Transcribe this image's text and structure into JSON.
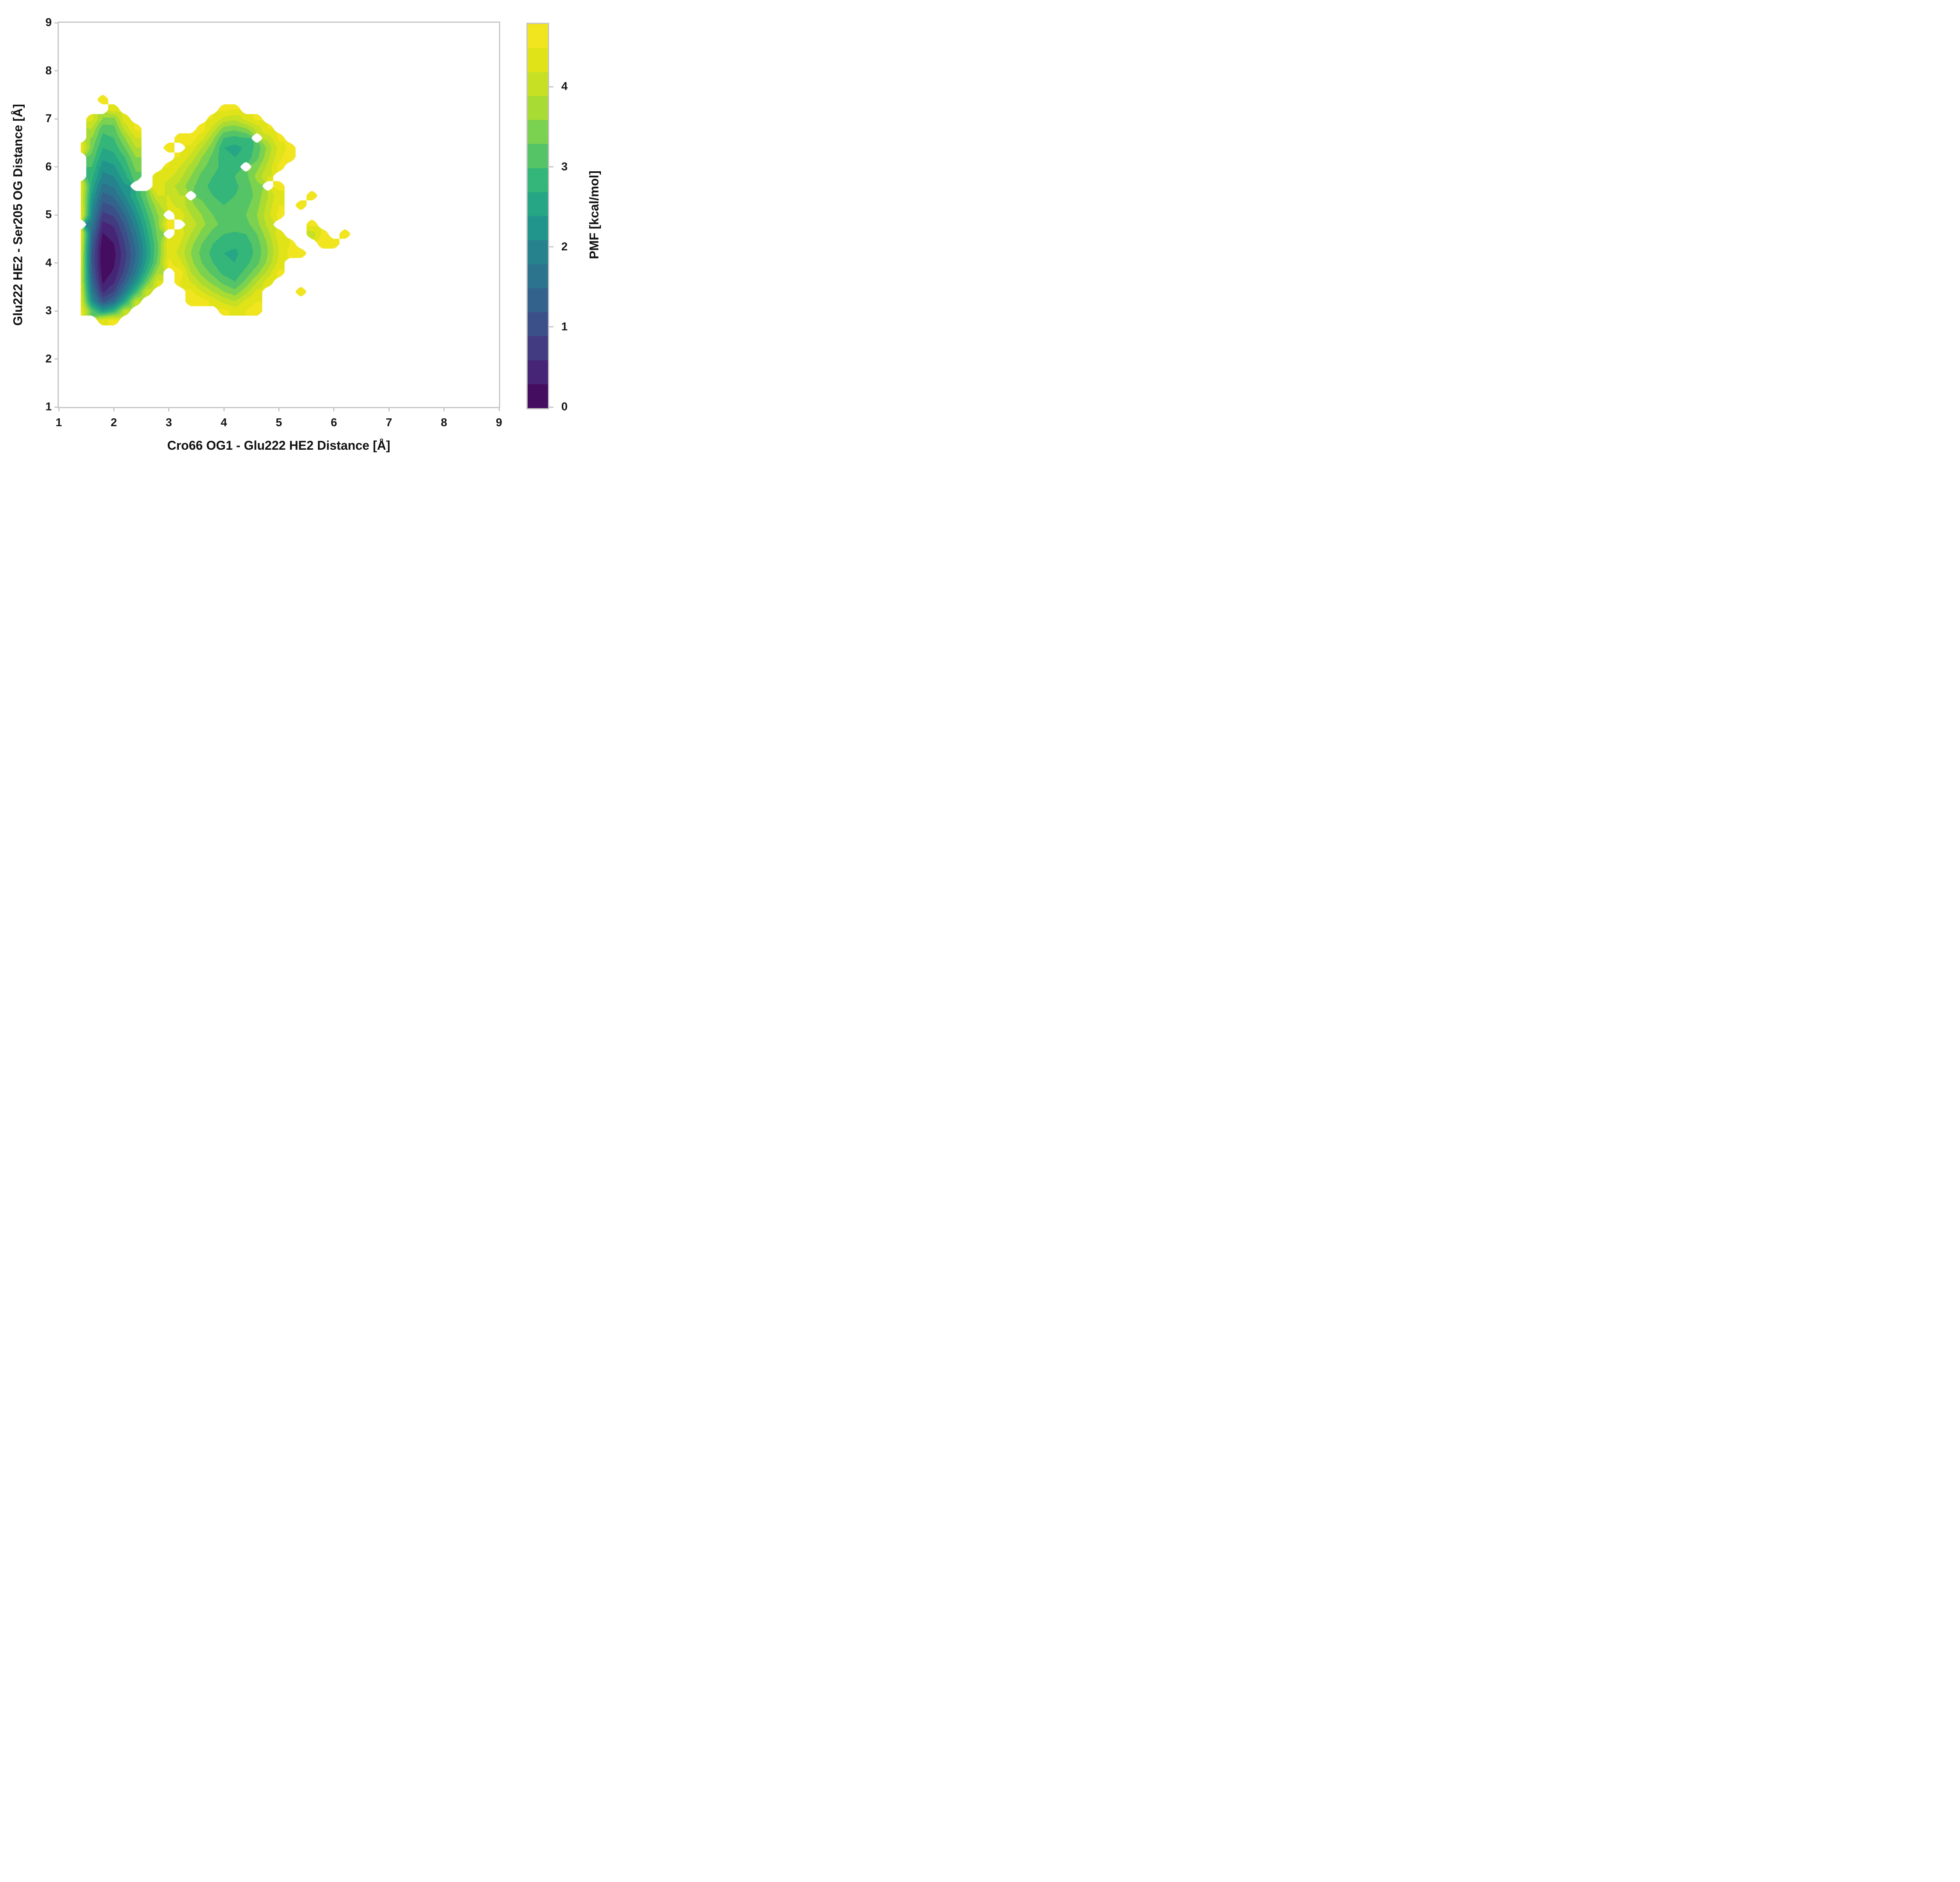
{
  "figure": {
    "background": "#ffffff",
    "spine_color": "#c6c6c6",
    "tick_color": "#c6c6c6",
    "text_color": "#161616"
  },
  "axes": {
    "x": {
      "label": "Cro66 OG1 - Glu222 HE2 Distance [Å]",
      "min": 1,
      "max": 9,
      "ticks": [
        "1",
        "2",
        "3",
        "4",
        "5",
        "6",
        "7",
        "8",
        "9"
      ]
    },
    "y": {
      "label": "Glu222 HE2 - Ser205 OG Distance [Å]",
      "min": 1,
      "max": 9,
      "ticks": [
        "1",
        "2",
        "3",
        "4",
        "5",
        "6",
        "7",
        "8",
        "9"
      ]
    }
  },
  "colorbar": {
    "title": "PMF [kcal/mol]",
    "tick_values": [
      0,
      1,
      2,
      3,
      4
    ],
    "tick_labels": [
      "0",
      "1",
      "2",
      "3",
      "4"
    ],
    "vmin": 0,
    "vmax": 4.8,
    "n_levels": 16,
    "level_step": 0.3,
    "colors": [
      "#450d5f",
      "#472576",
      "#423b81",
      "#3b5089",
      "#33628d",
      "#2c738e",
      "#26838e",
      "#21958b",
      "#26a684",
      "#34b57a",
      "#55c466",
      "#7bd150",
      "#a8db33",
      "#c7e023",
      "#e1e319",
      "#f0e51f"
    ]
  },
  "chart_data": {
    "type": "filled_contour",
    "title": "",
    "xlabel": "Cro66 OG1 - Glu222 HE2 Distance [Å]",
    "ylabel": "Glu222 HE2 - Ser205 OG Distance [Å]",
    "zlabel": "PMF [kcal/mol]",
    "xlim": [
      1,
      9
    ],
    "ylim": [
      1,
      9
    ],
    "zlim": [
      0,
      4.8
    ],
    "levels_step": 0.3,
    "legend": "colorbar-right",
    "grid_off": true,
    "features": {
      "global_minimum": {
        "x": 1.8,
        "y": 4.1,
        "pmf": 0.0
      },
      "secondary_basin": {
        "x": 4.2,
        "y": 4.3,
        "pmf": 2.6
      },
      "notes": "deep narrow basin near x=1.8 elongated y=3-7; broad shallow basin x=3.4-5 y=3-7.2; scattered high-PMF fragments out to x=6.3; white = unsampled"
    },
    "grid": {
      "x": [
        1.4,
        1.6,
        1.8,
        2.0,
        2.2,
        2.4,
        2.6,
        2.8,
        3.0,
        3.2,
        3.4,
        3.6,
        3.8,
        4.0,
        4.2,
        4.4,
        4.6,
        4.8,
        5.0,
        5.2,
        5.4,
        5.6,
        5.8,
        6.0,
        6.2,
        6.4
      ],
      "y": [
        2.6,
        2.8,
        3.0,
        3.2,
        3.4,
        3.6,
        3.8,
        4.0,
        4.2,
        4.4,
        4.6,
        4.8,
        5.0,
        5.2,
        5.4,
        5.6,
        5.8,
        6.0,
        6.2,
        6.4,
        6.6,
        6.8,
        7.0,
        7.2,
        7.4,
        7.6
      ],
      "values": [
        [
          null,
          null,
          null,
          null,
          null,
          null,
          null,
          null,
          null,
          null,
          null,
          null,
          null,
          null,
          null,
          null,
          null,
          null,
          null,
          null,
          null,
          null,
          null,
          null,
          null,
          null
        ],
        [
          null,
          null,
          4.4,
          4.6,
          null,
          null,
          null,
          null,
          null,
          null,
          null,
          null,
          null,
          null,
          null,
          null,
          null,
          null,
          null,
          null,
          null,
          null,
          null,
          null,
          null,
          null
        ],
        [
          4.6,
          3.2,
          2.4,
          2.8,
          4.0,
          null,
          null,
          null,
          null,
          null,
          null,
          null,
          null,
          4.6,
          4.4,
          4.5,
          4.7,
          null,
          null,
          null,
          null,
          null,
          null,
          null,
          null,
          null
        ],
        [
          4.4,
          2.2,
          1.1,
          1.5,
          2.6,
          4.0,
          null,
          null,
          null,
          null,
          4.7,
          4.7,
          4.4,
          4.1,
          3.9,
          4.3,
          4.5,
          null,
          null,
          null,
          null,
          null,
          null,
          null,
          null,
          null
        ],
        [
          4.3,
          1.8,
          0.55,
          0.9,
          1.8,
          2.9,
          4.1,
          null,
          null,
          null,
          4.6,
          4.2,
          3.9,
          3.6,
          3.4,
          3.8,
          4.3,
          null,
          null,
          null,
          4.6,
          null,
          null,
          null,
          null,
          null
        ],
        [
          4.2,
          1.5,
          0.25,
          0.55,
          1.3,
          2.2,
          3.3,
          4.3,
          null,
          4.5,
          4.2,
          3.8,
          3.5,
          3.2,
          3.0,
          3.4,
          3.9,
          4.4,
          null,
          null,
          null,
          null,
          null,
          null,
          null,
          null
        ],
        [
          4.2,
          1.3,
          0.12,
          0.35,
          1.0,
          1.8,
          2.8,
          3.8,
          null,
          4.7,
          3.9,
          3.5,
          3.2,
          2.9,
          2.8,
          3.1,
          3.5,
          4.0,
          4.6,
          null,
          null,
          null,
          null,
          null,
          null,
          null
        ],
        [
          4.3,
          1.2,
          0.05,
          0.25,
          0.85,
          1.6,
          2.5,
          3.4,
          4.6,
          4.3,
          3.7,
          3.3,
          3.0,
          2.75,
          2.7,
          2.9,
          3.2,
          3.7,
          4.3,
          null,
          null,
          null,
          null,
          null,
          null,
          null
        ],
        [
          4.3,
          1.2,
          0.02,
          0.2,
          0.8,
          1.5,
          2.4,
          3.3,
          4.4,
          4.1,
          3.6,
          3.2,
          2.9,
          2.7,
          2.65,
          2.8,
          3.1,
          3.6,
          4.2,
          4.6,
          4.6,
          null,
          null,
          null,
          null,
          null
        ],
        [
          4.4,
          1.3,
          0.1,
          0.3,
          0.9,
          1.6,
          2.45,
          3.3,
          4.5,
          4.2,
          3.7,
          3.3,
          3.0,
          2.8,
          2.75,
          2.85,
          3.15,
          3.65,
          4.25,
          4.5,
          null,
          null,
          4.7,
          4.6,
          null,
          null
        ],
        [
          4.5,
          1.5,
          0.28,
          0.45,
          1.05,
          1.75,
          2.6,
          3.4,
          null,
          4.4,
          3.9,
          3.5,
          3.2,
          3.0,
          2.95,
          3.0,
          3.3,
          3.8,
          4.4,
          null,
          null,
          4.0,
          4.6,
          null,
          4.7,
          null
        ],
        [
          null,
          1.8,
          0.5,
          0.65,
          1.25,
          1.95,
          2.75,
          3.5,
          4.7,
          null,
          4.1,
          3.7,
          3.4,
          3.2,
          3.15,
          3.2,
          3.5,
          4.0,
          null,
          null,
          null,
          4.6,
          null,
          null,
          null,
          null
        ],
        [
          4.6,
          2.0,
          0.8,
          0.95,
          1.5,
          2.2,
          2.95,
          3.6,
          null,
          4.4,
          3.9,
          3.6,
          3.3,
          3.1,
          3.2,
          3.3,
          3.6,
          4.1,
          4.6,
          null,
          null,
          null,
          null,
          null,
          null,
          null
        ],
        [
          4.5,
          2.2,
          1.1,
          1.25,
          1.8,
          2.45,
          3.15,
          3.8,
          4.3,
          4.1,
          3.7,
          3.4,
          3.1,
          3.0,
          3.1,
          3.2,
          3.5,
          4.0,
          4.5,
          null,
          4.7,
          null,
          null,
          null,
          null,
          null
        ],
        [
          4.4,
          2.4,
          1.4,
          1.55,
          2.1,
          2.7,
          3.35,
          4.2,
          4.2,
          3.9,
          null,
          3.2,
          3.0,
          2.9,
          3.0,
          3.1,
          3.4,
          3.9,
          4.4,
          null,
          null,
          4.6,
          null,
          null,
          null,
          null
        ],
        [
          4.4,
          2.6,
          1.7,
          1.85,
          2.35,
          null,
          null,
          4.5,
          4.0,
          3.8,
          3.4,
          3.1,
          2.9,
          2.8,
          2.95,
          3.1,
          3.5,
          null,
          4.6,
          null,
          null,
          null,
          null,
          null,
          null,
          null
        ],
        [
          null,
          2.8,
          2.0,
          2.1,
          2.6,
          3.2,
          null,
          4.3,
          4.3,
          4.0,
          3.6,
          3.2,
          3.0,
          2.85,
          3.0,
          3.2,
          3.7,
          4.2,
          null,
          null,
          null,
          null,
          null,
          null,
          null,
          null
        ],
        [
          null,
          3.0,
          2.2,
          2.35,
          2.8,
          3.4,
          null,
          null,
          4.5,
          4.2,
          3.8,
          3.4,
          3.1,
          2.9,
          2.9,
          null,
          3.5,
          4.0,
          4.6,
          null,
          null,
          null,
          null,
          null,
          null,
          null
        ],
        [
          null,
          3.2,
          2.5,
          2.6,
          3.0,
          3.6,
          null,
          null,
          null,
          4.5,
          4.1,
          3.6,
          3.2,
          2.8,
          2.7,
          2.8,
          3.2,
          3.8,
          4.4,
          4.7,
          null,
          null,
          null,
          null,
          null,
          null
        ],
        [
          4.6,
          3.4,
          2.7,
          2.8,
          3.3,
          3.9,
          null,
          null,
          4.7,
          null,
          4.4,
          3.9,
          3.4,
          2.7,
          2.6,
          2.75,
          3.1,
          3.7,
          4.3,
          4.6,
          null,
          null,
          null,
          null,
          null,
          null
        ],
        [
          null,
          3.6,
          2.9,
          3.0,
          3.6,
          4.2,
          null,
          null,
          null,
          4.7,
          4.7,
          4.3,
          3.7,
          3.0,
          2.9,
          3.0,
          null,
          4.0,
          4.6,
          null,
          null,
          null,
          null,
          null,
          null,
          null
        ],
        [
          null,
          3.9,
          3.1,
          3.2,
          4.0,
          4.6,
          null,
          null,
          null,
          null,
          null,
          4.7,
          4.1,
          3.5,
          3.4,
          3.6,
          4.0,
          4.5,
          null,
          null,
          null,
          null,
          null,
          null,
          null,
          null
        ],
        [
          null,
          4.3,
          3.6,
          3.5,
          4.4,
          null,
          null,
          null,
          null,
          null,
          null,
          null,
          4.5,
          4.1,
          4.0,
          4.3,
          4.6,
          null,
          null,
          null,
          null,
          null,
          null,
          null,
          null,
          null
        ],
        [
          null,
          null,
          null,
          4.4,
          null,
          null,
          null,
          null,
          null,
          null,
          null,
          null,
          null,
          4.6,
          4.5,
          null,
          null,
          null,
          null,
          null,
          null,
          null,
          null,
          null,
          null,
          null
        ],
        [
          null,
          null,
          4.7,
          null,
          null,
          null,
          null,
          null,
          null,
          null,
          null,
          null,
          null,
          null,
          null,
          null,
          null,
          null,
          null,
          null,
          null,
          null,
          null,
          null,
          null,
          null
        ],
        [
          null,
          null,
          null,
          null,
          null,
          null,
          null,
          null,
          null,
          null,
          null,
          null,
          null,
          null,
          null,
          null,
          null,
          null,
          null,
          null,
          null,
          null,
          null,
          null,
          null,
          null
        ]
      ]
    }
  }
}
